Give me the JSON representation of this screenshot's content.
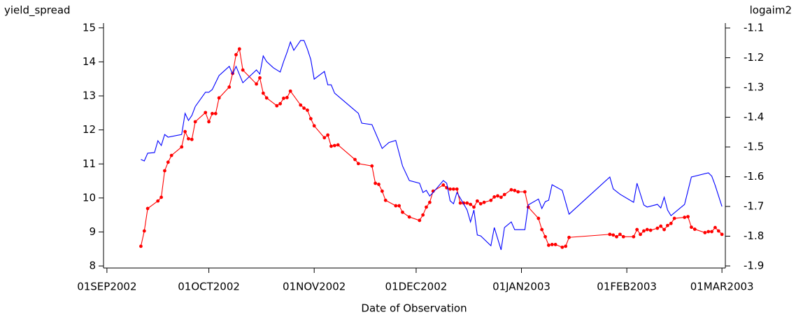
{
  "chart_data": {
    "type": "line",
    "ylabel": "yield_spread",
    "y2label": "logaim2",
    "xlabel": "Date of Observation",
    "xlim": [
      "2002-08-31",
      "2003-03-02"
    ],
    "xticks": [
      {
        "value": "2002-09-01",
        "label": "01SEP2002"
      },
      {
        "value": "2002-10-01",
        "label": "01OCT2002"
      },
      {
        "value": "2002-11-01",
        "label": "01NOV2002"
      },
      {
        "value": "2002-12-01",
        "label": "01DEC2002"
      },
      {
        "value": "2003-01-01",
        "label": "01JAN2003"
      },
      {
        "value": "2003-02-01",
        "label": "01FEB2003"
      },
      {
        "value": "2003-03-01",
        "label": "01MAR2003"
      }
    ],
    "ylim": [
      7.94,
      15.14
    ],
    "yticks": [
      8,
      9,
      10,
      11,
      12,
      13,
      14,
      15
    ],
    "y2lim": [
      -1.907,
      -1.0835
    ],
    "y2ticks": [
      -1.9,
      -1.8,
      -1.7,
      -1.6,
      -1.5,
      -1.4,
      -1.3,
      -1.2,
      -1.1
    ],
    "series": [
      {
        "color": "#ff0000",
        "markers": true,
        "x": [
          "2002-09-11",
          "2002-09-12",
          "2002-09-13",
          "2002-09-16",
          "2002-09-17",
          "2002-09-18",
          "2002-09-19",
          "2002-09-20",
          "2002-09-23",
          "2002-09-24",
          "2002-09-25",
          "2002-09-26",
          "2002-09-27",
          "2002-09-30",
          "2002-10-01",
          "2002-10-02",
          "2002-10-03",
          "2002-10-04",
          "2002-10-07",
          "2002-10-08",
          "2002-10-09",
          "2002-10-10",
          "2002-10-11",
          "2002-10-15",
          "2002-10-16",
          "2002-10-17",
          "2002-10-18",
          "2002-10-21",
          "2002-10-22",
          "2002-10-23",
          "2002-10-24",
          "2002-10-25",
          "2002-10-28",
          "2002-10-29",
          "2002-10-30",
          "2002-10-31",
          "2002-11-01",
          "2002-11-04",
          "2002-11-05",
          "2002-11-06",
          "2002-11-07",
          "2002-11-08",
          "2002-11-13",
          "2002-11-14",
          "2002-11-18",
          "2002-11-19",
          "2002-11-20",
          "2002-11-21",
          "2002-11-22",
          "2002-11-25",
          "2002-11-26",
          "2002-11-27",
          "2002-11-29",
          "2002-12-02",
          "2002-12-03",
          "2002-12-04",
          "2002-12-05",
          "2002-12-06",
          "2002-12-09",
          "2002-12-10",
          "2002-12-11",
          "2002-12-12",
          "2002-12-13",
          "2002-12-14",
          "2002-12-15",
          "2002-12-16",
          "2002-12-17",
          "2002-12-18",
          "2002-12-19",
          "2002-12-20",
          "2002-12-21",
          "2002-12-23",
          "2002-12-24",
          "2002-12-25",
          "2002-12-26",
          "2002-12-27",
          "2002-12-29",
          "2002-12-30",
          "2002-12-31",
          "2003-01-02",
          "2003-01-03",
          "2003-01-06",
          "2003-01-07",
          "2003-01-08",
          "2003-01-09",
          "2003-01-10",
          "2003-01-11",
          "2003-01-13",
          "2003-01-14",
          "2003-01-15",
          "2003-01-27",
          "2003-01-28",
          "2003-01-29",
          "2003-01-30",
          "2003-01-31",
          "2003-02-03",
          "2003-02-04",
          "2003-02-05",
          "2003-02-06",
          "2003-02-07",
          "2003-02-08",
          "2003-02-10",
          "2003-02-11",
          "2003-02-12",
          "2003-02-13",
          "2003-02-14",
          "2003-02-15",
          "2003-02-18",
          "2003-02-19",
          "2003-02-20",
          "2003-02-21",
          "2003-02-24",
          "2003-02-25",
          "2003-02-26",
          "2003-02-27",
          "2003-02-28",
          "2003-03-01"
        ],
        "values": [
          8.58,
          9.03,
          9.69,
          9.91,
          10.02,
          10.8,
          11.05,
          11.25,
          11.5,
          11.95,
          11.74,
          11.72,
          12.24,
          12.51,
          12.24,
          12.48,
          12.48,
          12.94,
          13.26,
          13.66,
          14.21,
          14.38,
          13.76,
          13.35,
          13.53,
          13.08,
          12.94,
          12.71,
          12.77,
          12.93,
          12.95,
          13.14,
          12.73,
          12.64,
          12.58,
          12.33,
          12.12,
          11.77,
          11.85,
          11.52,
          11.54,
          11.56,
          11.13,
          11.01,
          10.94,
          10.43,
          10.4,
          10.2,
          9.93,
          9.77,
          9.77,
          9.58,
          9.44,
          9.34,
          9.5,
          9.73,
          9.87,
          10.2,
          10.38,
          10.3,
          10.26,
          10.26,
          10.26,
          9.85,
          9.85,
          9.85,
          9.81,
          9.73,
          9.91,
          9.83,
          9.87,
          9.93,
          10.03,
          10.06,
          10.02,
          10.1,
          10.24,
          10.22,
          10.18,
          10.18,
          9.73,
          9.4,
          9.07,
          8.86,
          8.61,
          8.63,
          8.63,
          8.55,
          8.58,
          8.84,
          8.93,
          8.91,
          8.86,
          8.93,
          8.86,
          8.86,
          9.07,
          8.93,
          9.03,
          9.07,
          9.05,
          9.11,
          9.17,
          9.07,
          9.19,
          9.25,
          9.4,
          9.43,
          9.45,
          9.14,
          9.08,
          8.98,
          9.01,
          9.01,
          9.13,
          9.03,
          8.93
        ]
      },
      {
        "color": "#0000ff",
        "axis": "y2",
        "markers": false,
        "x": [
          "2002-09-11",
          "2002-09-12",
          "2002-09-13",
          "2002-09-15",
          "2002-09-16",
          "2002-09-17",
          "2002-09-18",
          "2002-09-19",
          "2002-09-23",
          "2002-09-24",
          "2002-09-25",
          "2002-09-26",
          "2002-09-27",
          "2002-09-30",
          "2002-10-01",
          "2002-10-02",
          "2002-10-04",
          "2002-10-07",
          "2002-10-08",
          "2002-10-09",
          "2002-10-11",
          "2002-10-15",
          "2002-10-16",
          "2002-10-17",
          "2002-10-18",
          "2002-10-20",
          "2002-10-22",
          "2002-10-23",
          "2002-10-24",
          "2002-10-25",
          "2002-10-26",
          "2002-10-28",
          "2002-10-29",
          "2002-10-30",
          "2002-10-31",
          "2002-11-01",
          "2002-11-04",
          "2002-11-05",
          "2002-11-06",
          "2002-11-07",
          "2002-11-14",
          "2002-11-15",
          "2002-11-18",
          "2002-11-21",
          "2002-11-23",
          "2002-11-25",
          "2002-11-27",
          "2002-11-29",
          "2002-12-02",
          "2002-12-03",
          "2002-12-04",
          "2002-12-05",
          "2002-12-06",
          "2002-12-09",
          "2002-12-10",
          "2002-12-11",
          "2002-12-12",
          "2002-12-13",
          "2002-12-14",
          "2002-12-16",
          "2002-12-17",
          "2002-12-18",
          "2002-12-19",
          "2002-12-20",
          "2002-12-23",
          "2002-12-24",
          "2002-12-26",
          "2002-12-27",
          "2002-12-29",
          "2002-12-30",
          "2003-01-02",
          "2003-01-03",
          "2003-01-06",
          "2003-01-07",
          "2003-01-08",
          "2003-01-09",
          "2003-01-10",
          "2003-01-13",
          "2003-01-15",
          "2003-01-27",
          "2003-01-28",
          "2003-01-30",
          "2003-02-03",
          "2003-02-04",
          "2003-02-06",
          "2003-02-07",
          "2003-02-10",
          "2003-02-11",
          "2003-02-12",
          "2003-02-13",
          "2003-02-14",
          "2003-02-18",
          "2003-02-20",
          "2003-02-25",
          "2003-02-26",
          "2003-02-27",
          "2003-03-01"
        ],
        "values": [
          -1.542,
          -1.547,
          -1.521,
          -1.519,
          -1.479,
          -1.495,
          -1.458,
          -1.467,
          -1.458,
          -1.387,
          -1.411,
          -1.394,
          -1.364,
          -1.316,
          -1.316,
          -1.307,
          -1.26,
          -1.229,
          -1.255,
          -1.229,
          -1.284,
          -1.241,
          -1.255,
          -1.194,
          -1.213,
          -1.234,
          -1.248,
          -1.213,
          -1.182,
          -1.147,
          -1.175,
          -1.142,
          -1.142,
          -1.171,
          -1.206,
          -1.272,
          -1.246,
          -1.291,
          -1.291,
          -1.319,
          -1.387,
          -1.42,
          -1.425,
          -1.505,
          -1.485,
          -1.478,
          -1.564,
          -1.613,
          -1.622,
          -1.653,
          -1.646,
          -1.665,
          -1.653,
          -1.613,
          -1.622,
          -1.681,
          -1.691,
          -1.653,
          -1.672,
          -1.712,
          -1.752,
          -1.712,
          -1.796,
          -1.799,
          -1.832,
          -1.771,
          -1.846,
          -1.771,
          -1.752,
          -1.778,
          -1.778,
          -1.695,
          -1.675,
          -1.707,
          -1.684,
          -1.679,
          -1.627,
          -1.646,
          -1.726,
          -1.601,
          -1.641,
          -1.659,
          -1.686,
          -1.622,
          -1.695,
          -1.702,
          -1.693,
          -1.705,
          -1.669,
          -1.712,
          -1.731,
          -1.693,
          -1.601,
          -1.587,
          -1.598,
          -1.629,
          -1.7
        ]
      }
    ]
  }
}
